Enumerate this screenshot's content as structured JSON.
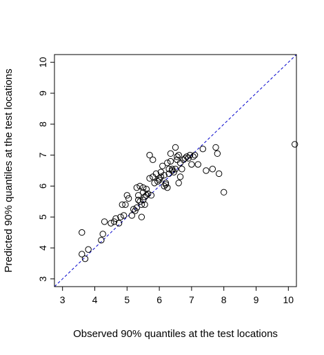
{
  "chart_data": {
    "type": "scatter",
    "title": "",
    "xlabel": "Observed 90% quantiles at the test locations",
    "ylabel": "Predicted 90% quantiles at the test locations",
    "xlim": [
      2.75,
      10.25
    ],
    "ylim": [
      2.75,
      10.25
    ],
    "xticks": [
      "3",
      "4",
      "5",
      "6",
      "7",
      "8",
      "9",
      "10"
    ],
    "yticks": [
      "3",
      "4",
      "5",
      "6",
      "7",
      "8",
      "9",
      "10"
    ],
    "grid": false,
    "reference_line": {
      "type": "y=x",
      "color": "#0000cc",
      "style": "dashed"
    },
    "points": [
      [
        3.6,
        3.8
      ],
      [
        3.6,
        4.5
      ],
      [
        3.7,
        3.65
      ],
      [
        3.8,
        3.95
      ],
      [
        4.2,
        4.25
      ],
      [
        4.25,
        4.45
      ],
      [
        4.3,
        4.85
      ],
      [
        4.5,
        4.8
      ],
      [
        4.6,
        4.85
      ],
      [
        4.65,
        4.95
      ],
      [
        4.75,
        4.8
      ],
      [
        4.8,
        5.0
      ],
      [
        4.85,
        5.4
      ],
      [
        4.9,
        5.05
      ],
      [
        4.95,
        5.4
      ],
      [
        5.0,
        5.7
      ],
      [
        5.05,
        5.6
      ],
      [
        5.15,
        5.05
      ],
      [
        5.2,
        5.25
      ],
      [
        5.25,
        5.2
      ],
      [
        5.3,
        5.95
      ],
      [
        5.3,
        5.3
      ],
      [
        5.35,
        5.55
      ],
      [
        5.35,
        5.7
      ],
      [
        5.4,
        6.0
      ],
      [
        5.4,
        5.5
      ],
      [
        5.45,
        5.4
      ],
      [
        5.45,
        5.0
      ],
      [
        5.5,
        5.55
      ],
      [
        5.5,
        5.8
      ],
      [
        5.5,
        5.95
      ],
      [
        5.55,
        5.65
      ],
      [
        5.55,
        5.4
      ],
      [
        5.6,
        5.7
      ],
      [
        5.6,
        5.9
      ],
      [
        5.65,
        5.75
      ],
      [
        5.7,
        6.25
      ],
      [
        5.7,
        7.0
      ],
      [
        5.75,
        5.7
      ],
      [
        5.8,
        6.3
      ],
      [
        5.8,
        6.85
      ],
      [
        5.85,
        6.1
      ],
      [
        5.9,
        6.4
      ],
      [
        5.95,
        6.15
      ],
      [
        6.0,
        6.25
      ],
      [
        6.0,
        6.2
      ],
      [
        6.05,
        6.3
      ],
      [
        6.05,
        6.45
      ],
      [
        6.1,
        6.65
      ],
      [
        6.15,
        6.0
      ],
      [
        6.15,
        6.35
      ],
      [
        6.2,
        6.1
      ],
      [
        6.2,
        6.05
      ],
      [
        6.25,
        6.75
      ],
      [
        6.25,
        5.95
      ],
      [
        6.3,
        6.4
      ],
      [
        6.3,
        6.55
      ],
      [
        6.35,
        6.8
      ],
      [
        6.35,
        7.05
      ],
      [
        6.4,
        6.5
      ],
      [
        6.4,
        6.55
      ],
      [
        6.45,
        6.45
      ],
      [
        6.5,
        6.55
      ],
      [
        6.5,
        7.25
      ],
      [
        6.55,
        6.95
      ],
      [
        6.55,
        6.85
      ],
      [
        6.6,
        7.0
      ],
      [
        6.6,
        6.1
      ],
      [
        6.65,
        6.3
      ],
      [
        6.65,
        6.75
      ],
      [
        6.7,
        6.55
      ],
      [
        6.75,
        6.85
      ],
      [
        6.8,
        6.9
      ],
      [
        6.85,
        6.95
      ],
      [
        6.9,
        6.9
      ],
      [
        6.95,
        7.0
      ],
      [
        7.0,
        6.7
      ],
      [
        7.05,
        6.95
      ],
      [
        7.1,
        7.0
      ],
      [
        7.2,
        6.7
      ],
      [
        7.35,
        7.2
      ],
      [
        7.45,
        6.5
      ],
      [
        7.65,
        6.55
      ],
      [
        7.75,
        7.25
      ],
      [
        7.8,
        7.05
      ],
      [
        7.85,
        6.4
      ],
      [
        8.0,
        5.8
      ],
      [
        10.2,
        7.35
      ]
    ]
  }
}
